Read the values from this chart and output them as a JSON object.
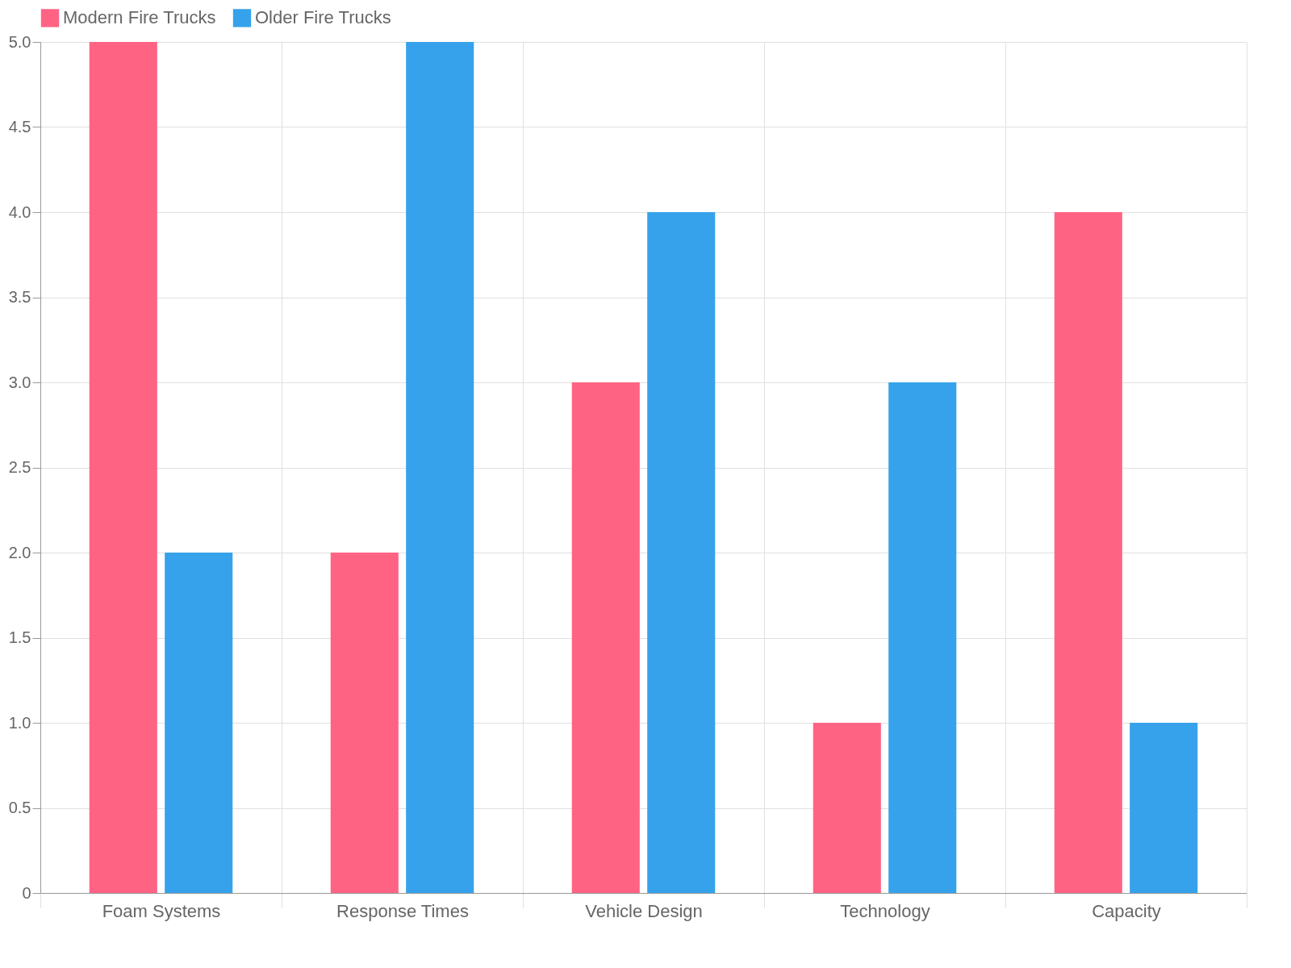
{
  "chart_data": {
    "type": "bar",
    "categories": [
      "Foam Systems",
      "Response Times",
      "Vehicle Design",
      "Technology",
      "Capacity"
    ],
    "series": [
      {
        "name": "Modern Fire Trucks",
        "color": "#ff6384",
        "values": [
          5,
          2,
          3,
          1,
          4
        ]
      },
      {
        "name": "Older Fire Trucks",
        "color": "#36a2eb",
        "values": [
          2,
          5,
          4,
          3,
          1
        ]
      }
    ],
    "ylim": [
      0,
      5
    ],
    "yticks": [
      0,
      {
        "value": 0.5,
        "label": "0.5"
      },
      {
        "value": 1,
        "label": "1.0"
      },
      {
        "value": 1.5,
        "label": "1.5"
      },
      {
        "value": 2,
        "label": "2.0"
      },
      {
        "value": 2.5,
        "label": "2.5"
      },
      {
        "value": 3,
        "label": "3.0"
      },
      {
        "value": 3.5,
        "label": "3.5"
      },
      {
        "value": 4,
        "label": "4.0"
      },
      {
        "value": 4.5,
        "label": "4.5"
      },
      {
        "value": 5,
        "label": "5.0"
      }
    ],
    "grid": true,
    "legend": "top"
  }
}
